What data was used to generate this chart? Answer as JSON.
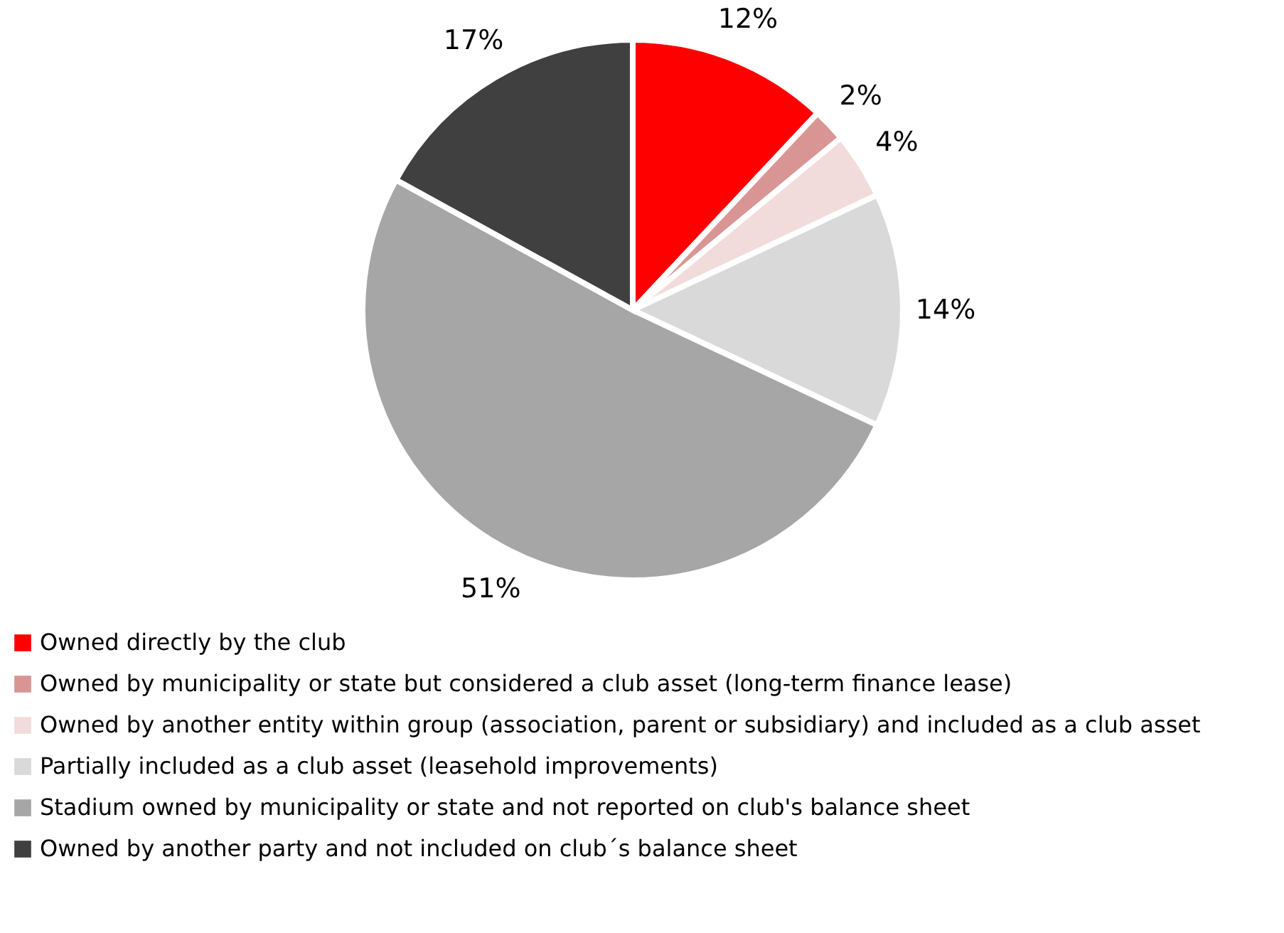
{
  "chart_data": {
    "type": "pie",
    "categories": [
      "Owned directly by the club",
      "Owned by municipality or state but considered a club asset (long-term finance lease)",
      "Owned by another entity within group (association, parent or subsidiary) and included as a club asset",
      "Partially included as a club asset (leasehold improvements)",
      "Stadium owned by municipality or state and not reported on club's balance sheet",
      "Owned by another party and not included on club´s balance sheet"
    ],
    "values": [
      12,
      2,
      4,
      14,
      51,
      17
    ],
    "value_labels": [
      "12%",
      "2%",
      "4%",
      "14%",
      "51%",
      "17%"
    ],
    "colors": [
      "#ff0000",
      "#d99594",
      "#f2dcdb",
      "#d9d9d9",
      "#a6a6a6",
      "#404040"
    ],
    "legend": "bottom left"
  }
}
